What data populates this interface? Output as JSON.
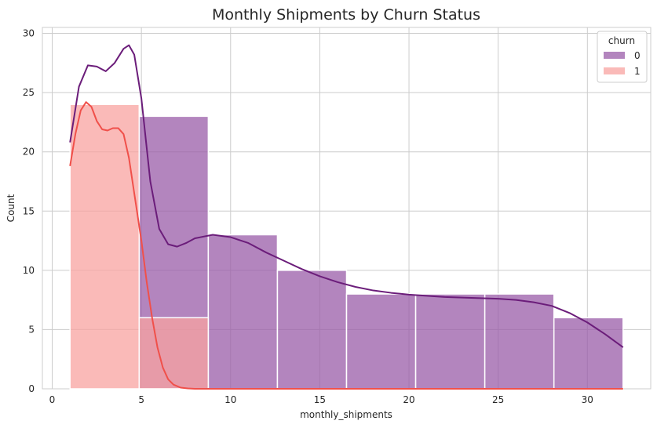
{
  "chart_data": {
    "type": "histogram",
    "title": "Monthly Shipments by Churn Status",
    "xlabel": "monthly_shipments",
    "ylabel": "Count",
    "xlim": [
      -0.55,
      33.55
    ],
    "ylim": [
      0,
      30.5
    ],
    "xticks": [
      0,
      5,
      10,
      15,
      20,
      25,
      30
    ],
    "yticks": [
      0,
      5,
      10,
      15,
      20,
      25,
      30
    ],
    "grid": true,
    "bin_edges": [
      1.0,
      4.875,
      8.75,
      12.625,
      16.5,
      20.375,
      24.25,
      28.125,
      32.0
    ],
    "legend": {
      "title": "churn",
      "placement": "top-right"
    },
    "series": [
      {
        "name": "0",
        "color": "#9a5ca8",
        "line_color": "#6b1d7a",
        "counts": [
          0,
          23,
          13,
          10,
          8,
          8,
          8,
          6
        ],
        "kde": [
          [
            1,
            20.8
          ],
          [
            1.5,
            25.5
          ],
          [
            2,
            27.3
          ],
          [
            2.5,
            27.2
          ],
          [
            3,
            26.8
          ],
          [
            3.5,
            27.5
          ],
          [
            4,
            28.7
          ],
          [
            4.3,
            29.0
          ],
          [
            4.6,
            28.2
          ],
          [
            5,
            24.5
          ],
          [
            5.5,
            17.5
          ],
          [
            6,
            13.5
          ],
          [
            6.5,
            12.2
          ],
          [
            7,
            12.0
          ],
          [
            7.5,
            12.3
          ],
          [
            8,
            12.7
          ],
          [
            9,
            13.0
          ],
          [
            10,
            12.8
          ],
          [
            11,
            12.3
          ],
          [
            12,
            11.5
          ],
          [
            13,
            10.8
          ],
          [
            14,
            10.1
          ],
          [
            15,
            9.5
          ],
          [
            16,
            9.0
          ],
          [
            17,
            8.6
          ],
          [
            18,
            8.3
          ],
          [
            19,
            8.1
          ],
          [
            20,
            7.95
          ],
          [
            21,
            7.85
          ],
          [
            22,
            7.75
          ],
          [
            23,
            7.7
          ],
          [
            24,
            7.65
          ],
          [
            25,
            7.6
          ],
          [
            26,
            7.5
          ],
          [
            27,
            7.3
          ],
          [
            28,
            7.0
          ],
          [
            29,
            6.4
          ],
          [
            30,
            5.6
          ],
          [
            31,
            4.6
          ],
          [
            32,
            3.5
          ]
        ]
      },
      {
        "name": "1",
        "color": "#f8a3a0",
        "line_color": "#f0504a",
        "counts": [
          24,
          6,
          0,
          0,
          0,
          0,
          0,
          0
        ],
        "kde": [
          [
            1,
            18.8
          ],
          [
            1.3,
            21.5
          ],
          [
            1.6,
            23.5
          ],
          [
            1.9,
            24.2
          ],
          [
            2.2,
            23.8
          ],
          [
            2.5,
            22.6
          ],
          [
            2.8,
            21.9
          ],
          [
            3.1,
            21.8
          ],
          [
            3.4,
            22.0
          ],
          [
            3.7,
            22.0
          ],
          [
            4,
            21.5
          ],
          [
            4.3,
            19.5
          ],
          [
            4.6,
            16.5
          ],
          [
            5,
            12.5
          ],
          [
            5.3,
            9.0
          ],
          [
            5.6,
            6.0
          ],
          [
            5.9,
            3.5
          ],
          [
            6.2,
            1.8
          ],
          [
            6.5,
            0.8
          ],
          [
            6.8,
            0.35
          ],
          [
            7.2,
            0.1
          ],
          [
            7.6,
            0.03
          ],
          [
            8,
            0.0
          ],
          [
            9,
            0.0
          ],
          [
            12,
            0.0
          ],
          [
            16,
            0.0
          ],
          [
            20,
            0.0
          ],
          [
            24,
            0.0
          ],
          [
            28,
            0.0
          ],
          [
            32,
            0.0
          ]
        ]
      }
    ]
  }
}
